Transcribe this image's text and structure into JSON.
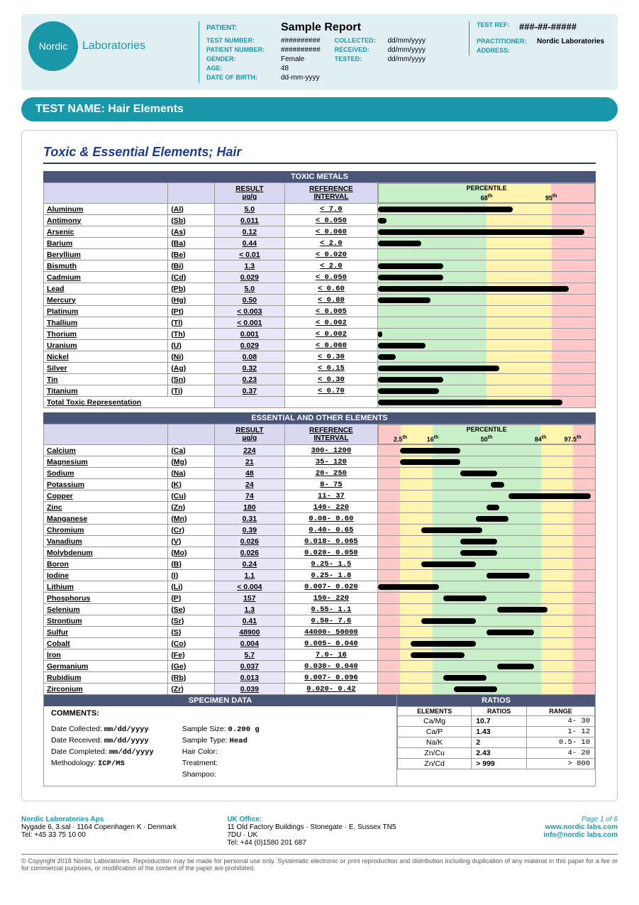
{
  "header": {
    "logo_circle": "Nordic",
    "logo_text": "Laboratories",
    "patient_lbl": "PATIENT:",
    "patient_val": "Sample Report",
    "test_ref_lbl": "TEST REF:",
    "test_ref_val": "###-##-#####",
    "labels": {
      "test_number": "TEST NUMBER:",
      "patient_number": "PATIENT NUMBER:",
      "gender": "GENDER:",
      "age": "AGE:",
      "dob": "DATE OF BIRTH:",
      "collected": "COLLECTED:",
      "received": "RECEIVED:",
      "tested": "TESTED:",
      "practitioner": "PRACTITIONER:",
      "address": "ADDRESS:"
    },
    "values": {
      "test_number": "##########",
      "patient_number": "##########",
      "gender": "Female",
      "age": "48",
      "dob": "dd-mm-yyyy",
      "collected": "dd/mm/yyyy",
      "received": "dd/mm/yyyy",
      "tested": "dd/mm/yyyy",
      "practitioner": "Nordic Laboratories",
      "address": ""
    }
  },
  "testname": "TEST NAME: Hair Elements",
  "section_title": "Toxic & Essential Elements; Hair",
  "toxic": {
    "band": "TOXIC METALS",
    "hdr": {
      "result": "RESULT",
      "result_unit": "µg/g",
      "ref": "REFERENCE",
      "ref2": "INTERVAL",
      "pct": "PERCENTILE",
      "p68": "68",
      "p95": "95",
      "th": "th"
    },
    "chart": {
      "zone_green_w": 50,
      "zone_yellow_w": 30,
      "zone_red_w": 20
    },
    "rows": [
      {
        "name": "Aluminum",
        "sym": "(Al)",
        "res": "5.0",
        "ref": "<   7.0",
        "bar": 62
      },
      {
        "name": "Antimony",
        "sym": "(Sb)",
        "res": "0.011",
        "ref": "< 0.050",
        "bar": 4
      },
      {
        "name": "Arsenic",
        "sym": "(As)",
        "res": "0.12",
        "ref": "< 0.060",
        "bar": 95
      },
      {
        "name": "Barium",
        "sym": "(Ba)",
        "res": "0.44",
        "ref": "<   2.0",
        "bar": 20
      },
      {
        "name": "Beryllium",
        "sym": "(Be)",
        "res": "< 0.01",
        "ref": "< 0.020",
        "bar": 0
      },
      {
        "name": "Bismuth",
        "sym": "(Bi)",
        "res": "1.3",
        "ref": "<   2.0",
        "bar": 30
      },
      {
        "name": "Cadmium",
        "sym": "(Cd)",
        "res": "0.029",
        "ref": "< 0.050",
        "bar": 30
      },
      {
        "name": "Lead",
        "sym": "(Pb)",
        "res": "5.0",
        "ref": "<  0.60",
        "bar": 88
      },
      {
        "name": "Mercury",
        "sym": "(Hg)",
        "res": "0.50",
        "ref": "<  0.80",
        "bar": 24
      },
      {
        "name": "Platinum",
        "sym": "(Pt)",
        "res": "< 0.003",
        "ref": "< 0.005",
        "bar": 0
      },
      {
        "name": "Thallium",
        "sym": "(Tl)",
        "res": "< 0.001",
        "ref": "< 0.002",
        "bar": 0
      },
      {
        "name": "Thorium",
        "sym": "(Th)",
        "res": "0.001",
        "ref": "< 0.002",
        "bar": 2
      },
      {
        "name": "Uranium",
        "sym": "(U)",
        "res": "0.029",
        "ref": "< 0.060",
        "bar": 22
      },
      {
        "name": "Nickel",
        "sym": "(Ni)",
        "res": "0.08",
        "ref": "<  0.30",
        "bar": 8
      },
      {
        "name": "Silver",
        "sym": "(Ag)",
        "res": "0.32",
        "ref": "<  0.15",
        "bar": 56
      },
      {
        "name": "Tin",
        "sym": "(Sn)",
        "res": "0.23",
        "ref": "<  0.30",
        "bar": 30
      },
      {
        "name": "Titanium",
        "sym": "(Ti)",
        "res": "0.37",
        "ref": "<  0.70",
        "bar": 28
      }
    ],
    "total_row": {
      "name": "Total Toxic Representation",
      "bar": 85
    }
  },
  "essential": {
    "band": "ESSENTIAL AND OTHER ELEMENTS",
    "hdr": {
      "result": "RESULT",
      "result_unit": "µg/g",
      "ref": "REFERENCE",
      "ref2": "INTERVAL",
      "pct": "PERCENTILE",
      "ticks": [
        "2.5",
        "16",
        "50",
        "84",
        "97.5"
      ],
      "th": "th"
    },
    "chart": {
      "zones": [
        {
          "c": "#ffc8c8",
          "w": 10
        },
        {
          "c": "#fff3b0",
          "w": 15
        },
        {
          "c": "#c8f0c8",
          "w": 50
        },
        {
          "c": "#fff3b0",
          "w": 15
        },
        {
          "c": "#ffc8c8",
          "w": 10
        }
      ]
    },
    "rows": [
      {
        "name": "Calcium",
        "sym": "(Ca)",
        "res": "224",
        "ref": "300-  1200",
        "start": 10,
        "end": 38
      },
      {
        "name": "Magnesium",
        "sym": "(Mg)",
        "res": "21",
        "ref": "35-   120",
        "start": 10,
        "end": 38
      },
      {
        "name": "Sodium",
        "sym": "(Na)",
        "res": "48",
        "ref": "20-   250",
        "start": 38,
        "end": 55
      },
      {
        "name": "Potassium",
        "sym": "(K)",
        "res": "24",
        "ref": "8-    75",
        "start": 52,
        "end": 58
      },
      {
        "name": "Copper",
        "sym": "(Cu)",
        "res": "74",
        "ref": "11-    37",
        "start": 60,
        "end": 98
      },
      {
        "name": "Zinc",
        "sym": "(Zn)",
        "res": "180",
        "ref": "140-   220",
        "start": 50,
        "end": 56
      },
      {
        "name": "Manganese",
        "sym": "(Mn)",
        "res": "0.31",
        "ref": "0.08-  0.60",
        "start": 45,
        "end": 60
      },
      {
        "name": "Chromium",
        "sym": "(Cr)",
        "res": "0.39",
        "ref": "0.40-  0.65",
        "start": 20,
        "end": 48
      },
      {
        "name": "Vanadium",
        "sym": "(V)",
        "res": "0.026",
        "ref": "0.018- 0.065",
        "start": 38,
        "end": 55
      },
      {
        "name": "Molybdenum",
        "sym": "(Mo)",
        "res": "0.026",
        "ref": "0.020- 0.050",
        "start": 38,
        "end": 55
      },
      {
        "name": "Boron",
        "sym": "(B)",
        "res": "0.24",
        "ref": "0.25-   1.5",
        "start": 20,
        "end": 45
      },
      {
        "name": "Iodine",
        "sym": "(I)",
        "res": "1.1",
        "ref": "0.25-   1.8",
        "start": 50,
        "end": 70
      },
      {
        "name": "Lithium",
        "sym": "(Li)",
        "res": "< 0.004",
        "ref": "0.007- 0.020",
        "start": 0,
        "end": 28
      },
      {
        "name": "Phosphorus",
        "sym": "(P)",
        "res": "157",
        "ref": "150-   220",
        "start": 30,
        "end": 50
      },
      {
        "name": "Selenium",
        "sym": "(Se)",
        "res": "1.3",
        "ref": "0.55-   1.1",
        "start": 55,
        "end": 78
      },
      {
        "name": "Strontium",
        "sym": "(Sr)",
        "res": "0.41",
        "ref": "0.50-   7.6",
        "start": 20,
        "end": 45
      },
      {
        "name": "Sulfur",
        "sym": "(S)",
        "res": "48900",
        "ref": "44000- 50000",
        "start": 50,
        "end": 72
      },
      {
        "name": "Cobalt",
        "sym": "(Co)",
        "res": "0.004",
        "ref": "0.005- 0.040",
        "start": 15,
        "end": 45
      },
      {
        "name": "Iron",
        "sym": "(Fe)",
        "res": "5.7",
        "ref": "7.0-    16",
        "start": 15,
        "end": 40
      },
      {
        "name": "Germanium",
        "sym": "(Ge)",
        "res": "0.037",
        "ref": "0.030- 0.040",
        "start": 55,
        "end": 72
      },
      {
        "name": "Rubidium",
        "sym": "(Rb)",
        "res": "0.013",
        "ref": "0.007- 0.096",
        "start": 30,
        "end": 50
      },
      {
        "name": "Zirconium",
        "sym": "(Zr)",
        "res": "0.039",
        "ref": "0.020-  0.42",
        "start": 35,
        "end": 55
      }
    ]
  },
  "specimen": {
    "band": "SPECIMEN DATA",
    "comments_lbl": "COMMENTS:",
    "left": [
      {
        "l": "Date Collected:",
        "v": "mm/dd/yyyy"
      },
      {
        "l": "Date Received:",
        "v": "mm/dd/yyyy"
      },
      {
        "l": "Date Completed:",
        "v": "mm/dd/yyyy"
      },
      {
        "l": "Methodology:",
        "v": "ICP/MS"
      }
    ],
    "right": [
      {
        "l": "Sample Size:",
        "v": "0.200 g"
      },
      {
        "l": "Sample Type:",
        "v": "Head"
      },
      {
        "l": "Hair Color:",
        "v": ""
      },
      {
        "l": "Treatment:",
        "v": ""
      },
      {
        "l": "Shampoo:",
        "v": ""
      }
    ]
  },
  "ratios": {
    "band": "RATIOS",
    "hdr": {
      "el": "ELEMENTS",
      "ra": "RATIOS",
      "rg": "RANGE"
    },
    "rows": [
      {
        "el": "Ca/Mg",
        "ra": "10.7",
        "rg": "4-  30"
      },
      {
        "el": "Ca/P",
        "ra": "1.43",
        "rg": "1-  12"
      },
      {
        "el": "Na/K",
        "ra": "2",
        "rg": "0.5-  10"
      },
      {
        "el": "Zn/Cu",
        "ra": "2.43",
        "rg": "4-  20"
      },
      {
        "el": "Zn/Cd",
        "ra": "> 999",
        "rg": "> 800"
      }
    ]
  },
  "footer": {
    "dk_title": "Nordic Laboratories Aps",
    "dk_addr": "Nygade 6, 3.sal · 1164 Copenhagen K · Denmark",
    "dk_tel": "Tel: +45 33 75 10 00",
    "uk_title": "UK Office:",
    "uk_addr": "11 Old Factory Buildings · Stonegate · E. Sussex TN5 7DU · UK",
    "uk_tel": "Tel: +44 (0)1580 201 687",
    "page": "Page 1 of 6",
    "web": "www.nordic labs.com",
    "email": "info@nordic labs.com",
    "copyright": "© Copyright 2018 Nordic Laboratories. Reproduction may be made for personal use only. Systematic electronic or print reproduction and distribution including duplication of any material in this paper for a fee or for commercial purposes, or modification of the content of the paper are prohibited."
  }
}
